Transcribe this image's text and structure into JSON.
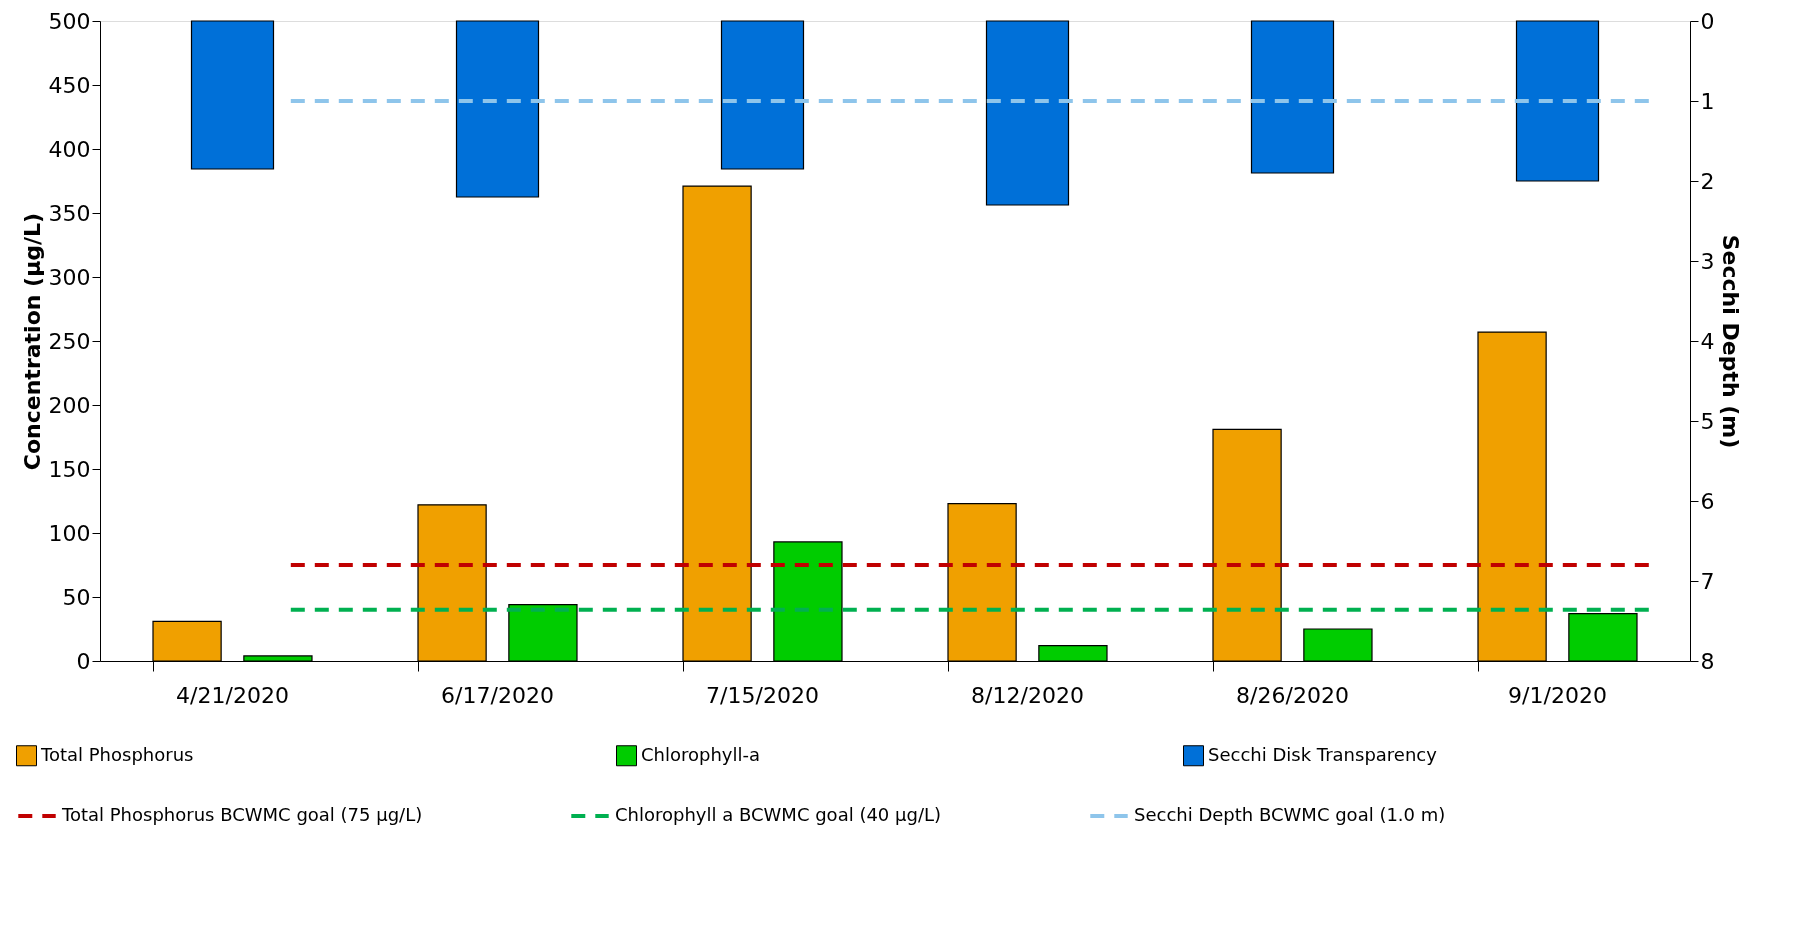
{
  "chart_data": {
    "type": "bar",
    "ylabel": "Concentration (µg/L)",
    "y2label": "Secchi Depth (m)",
    "categories": [
      "4/21/2020",
      "6/17/2020",
      "7/15/2020",
      "8/12/2020",
      "8/26/2020",
      "9/1/2020"
    ],
    "series": [
      {
        "name": "Total Phosphorus",
        "color": "#f0a000",
        "values": [
          31,
          122,
          371,
          123,
          181,
          257
        ]
      },
      {
        "name": "Chlorophyll-a",
        "color": "#00cc00",
        "values": [
          4,
          44,
          93,
          12,
          25,
          37
        ]
      },
      {
        "name": "Secchi Disk Transparency",
        "color": "#0070d8",
        "axis": "y2",
        "values": [
          1.85,
          2.2,
          1.85,
          2.3,
          1.9,
          2.0
        ]
      }
    ],
    "ylim": [
      0,
      500
    ],
    "yticks": [
      0,
      50,
      100,
      150,
      200,
      250,
      300,
      350,
      400,
      450,
      500
    ],
    "y2lim": [
      8,
      0
    ],
    "y2ticks": [
      0,
      1,
      2,
      3,
      4,
      5,
      6,
      7,
      8
    ],
    "ref_lines": [
      {
        "axis": "y",
        "value": 75,
        "label": "Total Phosphorus BCWMC goal (75 µg/L)",
        "color": "#c00000",
        "line_style": "dashed"
      },
      {
        "axis": "y",
        "value": 40,
        "label": "Chlorophyll a BCWMC goal (40 µg/L)",
        "color": "#00b050",
        "line_style": "dashed"
      },
      {
        "axis": "y2",
        "value": 1.0,
        "label": "Secchi Depth BCWMC goal (1.0 m)",
        "color": "#8ec5eb",
        "line_style": "dashed"
      }
    ],
    "legend": "bottom",
    "grid": false
  }
}
